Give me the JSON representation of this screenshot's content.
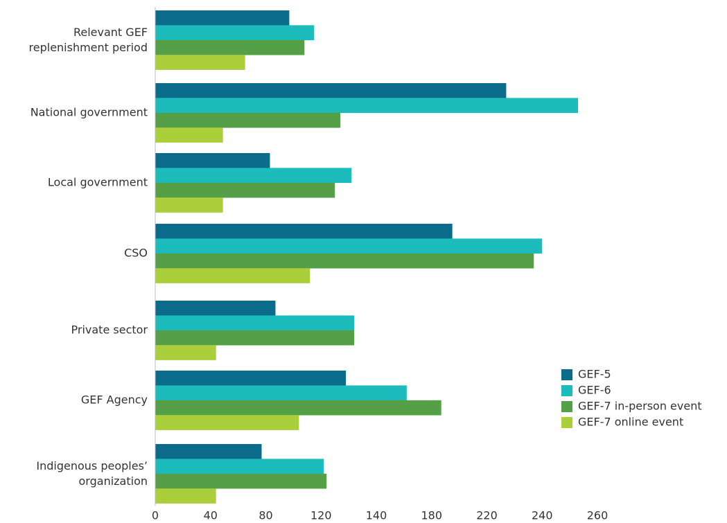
{
  "chart_data": {
    "type": "bar",
    "orientation": "horizontal",
    "categories": [
      "Relevant GEF\nreplenishment period",
      "National government",
      "Local government",
      "CSO",
      "Private sector",
      "GEF Agency",
      "Indigenous peoples’\norganization"
    ],
    "series": [
      {
        "name": "GEF-5",
        "color": "#0b6b8a",
        "values": [
          97,
          227,
          83,
          195,
          87,
          129,
          77
        ]
      },
      {
        "name": "GEF-6",
        "color": "#1cbcbc",
        "values": [
          115,
          253,
          131,
          240,
          132,
          162,
          121
        ]
      },
      {
        "name": "GEF-7 in-person event",
        "color": "#55a047",
        "values": [
          108,
          127,
          125,
          237,
          132,
          187,
          122
        ]
      },
      {
        "name": "GEF-7 online event",
        "color": "#aacf3b",
        "values": [
          65,
          49,
          49,
          112,
          44,
          104,
          44
        ]
      }
    ],
    "xlim": [
      0,
      260
    ],
    "xticks": [
      0,
      40,
      80,
      120,
      140,
      180,
      220,
      240,
      260
    ],
    "legend": "lower right"
  }
}
